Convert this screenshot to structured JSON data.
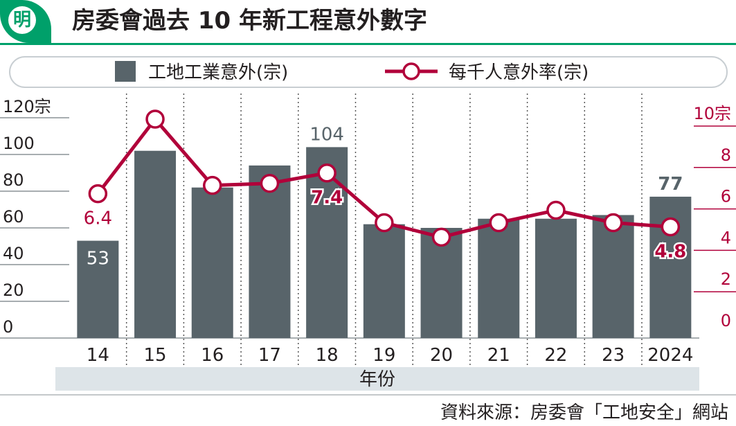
{
  "header": {
    "logo_char": "明",
    "title": "房委會過去 10 年新工程意外數字"
  },
  "colors": {
    "bar": "#58646a",
    "line": "#b1003a",
    "brand": "#00a06a",
    "axis_band": "#dde4e8",
    "text": "#231f20"
  },
  "source": "資料來源：房委會「工地安全」網站",
  "chart_data": {
    "type": "bar+line",
    "categories": [
      "14",
      "15",
      "16",
      "17",
      "18",
      "19",
      "20",
      "21",
      "22",
      "23",
      "2024"
    ],
    "xlabel": "年份",
    "bars": {
      "name": "工地工業意外(宗)",
      "values": [
        53,
        102,
        82,
        94,
        104,
        62,
        60,
        65,
        65,
        67,
        77
      ],
      "data_labels": [
        "53",
        "",
        "",
        "",
        "104",
        "",
        "",
        "",
        "",
        "",
        "77"
      ]
    },
    "line": {
      "name": "每千人意外率(宗)",
      "values": [
        6.4,
        10.0,
        6.8,
        6.9,
        7.4,
        5.0,
        4.3,
        5.0,
        5.6,
        5.0,
        4.8
      ],
      "data_labels": [
        "6.4",
        "",
        "",
        "",
        "7.4",
        "",
        "",
        "",
        "",
        "",
        "4.8"
      ]
    },
    "y_left": {
      "range": [
        0,
        120
      ],
      "ticks": [
        "0",
        "20",
        "40",
        "60",
        "80",
        "100",
        "120宗"
      ]
    },
    "y_right": {
      "range": [
        0,
        10
      ],
      "ticks": [
        "0",
        "2",
        "4",
        "6",
        "8",
        "10宗"
      ]
    },
    "grid": "dotted vertical separators",
    "legend": "top"
  }
}
